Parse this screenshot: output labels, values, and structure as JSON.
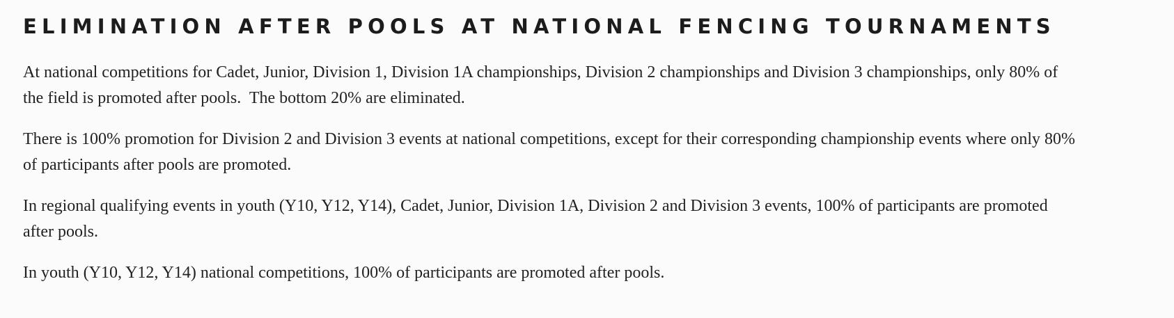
{
  "header": {
    "title": "ELIMINATION AFTER POOLS AT NATIONAL FENCING TOURNAMENTS"
  },
  "paragraphs": [
    "At national competitions for Cadet, Junior, Division 1, Division 1A championships, Division 2 championships and Division 3 championships, only 80% of the field is promoted after pools.  The bottom 20% are eliminated.",
    "There is 100% promotion for Division 2 and Division 3 events at national competitions, except for their corresponding championship events where only 80% of participants after pools are promoted.",
    "In regional qualifying events in youth (Y10, Y12, Y14), Cadet, Junior, Division 1A, Division 2 and Division 3 events, 100% of participants are promoted after pools.",
    "In youth (Y10, Y12, Y14) national competitions, 100% of participants are promoted after pools."
  ]
}
